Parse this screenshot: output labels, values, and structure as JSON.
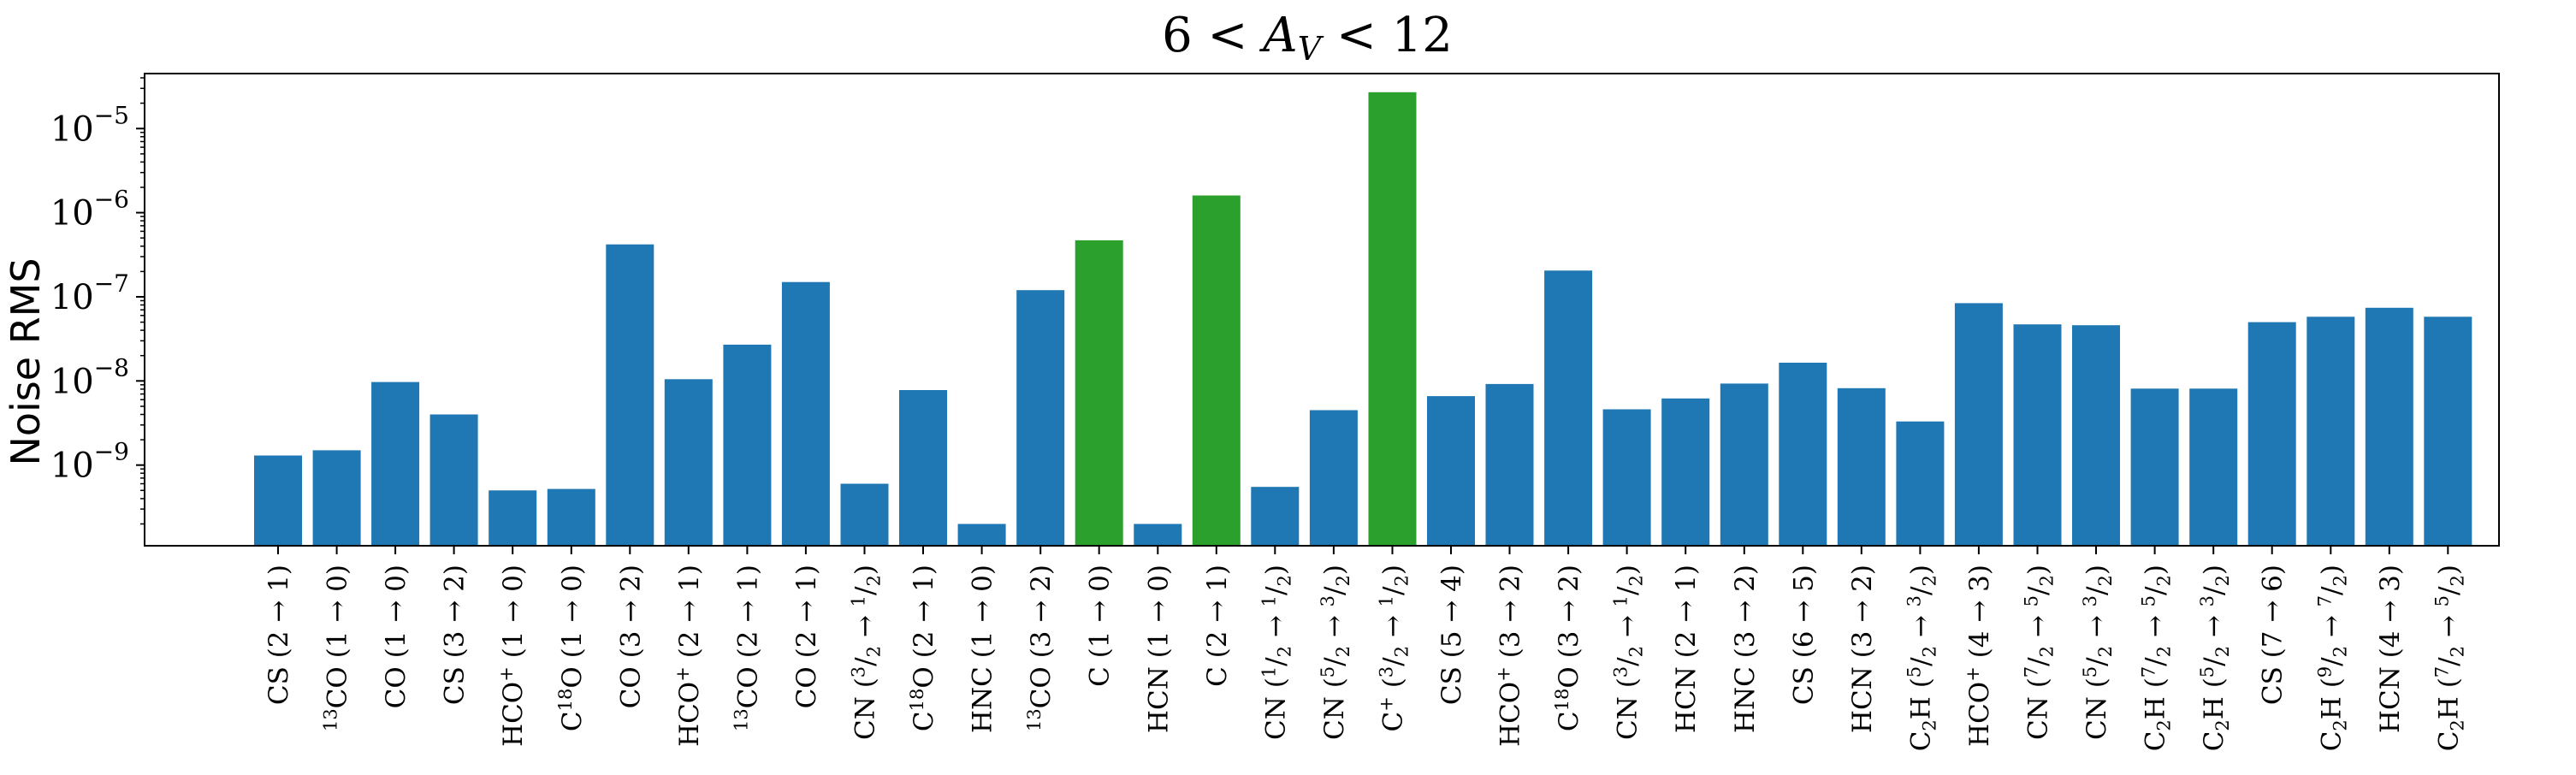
{
  "chart_data": {
    "type": "bar",
    "title": "6 < A_V < 12",
    "title_parts": {
      "left": "6 < ",
      "var": "A",
      "sub": "V",
      "right": " < 12"
    },
    "ylabel": "Noise RMS",
    "xlabel": "",
    "yscale": "log",
    "ylim": [
      1.1e-10,
      4.5e-05
    ],
    "yticks": [
      {
        "value": 1e-09,
        "base": "10",
        "exp": "−9"
      },
      {
        "value": 1e-08,
        "base": "10",
        "exp": "−8"
      },
      {
        "value": 1e-07,
        "base": "10",
        "exp": "−7"
      },
      {
        "value": 1e-06,
        "base": "10",
        "exp": "−6"
      },
      {
        "value": 1e-05,
        "base": "10",
        "exp": "−5"
      }
    ],
    "grid": false,
    "legend": "none",
    "colors": {
      "default": "#1f77b4",
      "highlight": "#2ca02c"
    },
    "categories": [
      "CS (2 → 1)",
      "13CO (1 → 0)",
      "CO (1 → 0)",
      "CS (3 → 2)",
      "HCO+ (1 → 0)",
      "C18O (1 → 0)",
      "CO (3 → 2)",
      "HCO+ (2 → 1)",
      "13CO (2 → 1)",
      "CO (2 → 1)",
      "CN (3/2 → 1/2)",
      "C18O (2 → 1)",
      "HNC (1 → 0)",
      "13CO (3 → 2)",
      "C (1 → 0)",
      "HCN (1 → 0)",
      "C (2 → 1)",
      "CN (1/2 → 1/2)",
      "CN (5/2 → 3/2)",
      "C+ (3/2 → 1/2)",
      "CS (5 → 4)",
      "HCO+ (3 → 2)",
      "C18O (3 → 2)",
      "CN (3/2 → 1/2)",
      "HCN (2 → 1)",
      "HNC (3 → 2)",
      "CS (6 → 5)",
      "HCN (3 → 2)",
      "C2H (5/2 → 3/2)",
      "HCO+ (4 → 3)",
      "CN (7/2 → 5/2)",
      "CN (5/2 → 3/2)",
      "C2H (7/2 → 5/2)",
      "C2H (5/2 → 3/2)",
      "CS (7 → 6)",
      "C2H (9/2 → 7/2)",
      "HCN (4 → 3)",
      "C2H (7/2 → 5/2)"
    ],
    "category_labels": [
      [
        {
          "t": "CS (2 → 1)"
        }
      ],
      [
        {
          "t": "13",
          "s": "sup"
        },
        {
          "t": "CO (1 → 0)"
        }
      ],
      [
        {
          "t": "CO (1 → 0)"
        }
      ],
      [
        {
          "t": "CS (3 → 2)"
        }
      ],
      [
        {
          "t": "HCO"
        },
        {
          "t": "+",
          "s": "sup"
        },
        {
          "t": " (1 → 0)"
        }
      ],
      [
        {
          "t": "C"
        },
        {
          "t": "18",
          "s": "sup"
        },
        {
          "t": "O (1 → 0)"
        }
      ],
      [
        {
          "t": "CO (3 → 2)"
        }
      ],
      [
        {
          "t": "HCO"
        },
        {
          "t": "+",
          "s": "sup"
        },
        {
          "t": " (2 → 1)"
        }
      ],
      [
        {
          "t": "13",
          "s": "sup"
        },
        {
          "t": "CO (2 → 1)"
        }
      ],
      [
        {
          "t": "CO (2 → 1)"
        }
      ],
      [
        {
          "t": "CN ("
        },
        {
          "t": "3",
          "s": "sup"
        },
        {
          "t": "/"
        },
        {
          "t": "2",
          "s": "sub"
        },
        {
          "t": " → "
        },
        {
          "t": "1",
          "s": "sup"
        },
        {
          "t": "/"
        },
        {
          "t": "2",
          "s": "sub"
        },
        {
          "t": ")"
        }
      ],
      [
        {
          "t": "C"
        },
        {
          "t": "18",
          "s": "sup"
        },
        {
          "t": "O (2 → 1)"
        }
      ],
      [
        {
          "t": "HNC (1 → 0)"
        }
      ],
      [
        {
          "t": "13",
          "s": "sup"
        },
        {
          "t": "CO (3 → 2)"
        }
      ],
      [
        {
          "t": "C (1 → 0)"
        }
      ],
      [
        {
          "t": "HCN (1 → 0)"
        }
      ],
      [
        {
          "t": "C (2 → 1)"
        }
      ],
      [
        {
          "t": "CN ("
        },
        {
          "t": "1",
          "s": "sup"
        },
        {
          "t": "/"
        },
        {
          "t": "2",
          "s": "sub"
        },
        {
          "t": " → "
        },
        {
          "t": "1",
          "s": "sup"
        },
        {
          "t": "/"
        },
        {
          "t": "2",
          "s": "sub"
        },
        {
          "t": ")"
        }
      ],
      [
        {
          "t": "CN ("
        },
        {
          "t": "5",
          "s": "sup"
        },
        {
          "t": "/"
        },
        {
          "t": "2",
          "s": "sub"
        },
        {
          "t": " → "
        },
        {
          "t": "3",
          "s": "sup"
        },
        {
          "t": "/"
        },
        {
          "t": "2",
          "s": "sub"
        },
        {
          "t": ")"
        }
      ],
      [
        {
          "t": "C"
        },
        {
          "t": "+",
          "s": "sup"
        },
        {
          "t": " ("
        },
        {
          "t": "3",
          "s": "sup"
        },
        {
          "t": "/"
        },
        {
          "t": "2",
          "s": "sub"
        },
        {
          "t": " → "
        },
        {
          "t": "1",
          "s": "sup"
        },
        {
          "t": "/"
        },
        {
          "t": "2",
          "s": "sub"
        },
        {
          "t": ")"
        }
      ],
      [
        {
          "t": "CS (5 → 4)"
        }
      ],
      [
        {
          "t": "HCO"
        },
        {
          "t": "+",
          "s": "sup"
        },
        {
          "t": " (3 → 2)"
        }
      ],
      [
        {
          "t": "C"
        },
        {
          "t": "18",
          "s": "sup"
        },
        {
          "t": "O (3 → 2)"
        }
      ],
      [
        {
          "t": "CN ("
        },
        {
          "t": "3",
          "s": "sup"
        },
        {
          "t": "/"
        },
        {
          "t": "2",
          "s": "sub"
        },
        {
          "t": " → "
        },
        {
          "t": "1",
          "s": "sup"
        },
        {
          "t": "/"
        },
        {
          "t": "2",
          "s": "sub"
        },
        {
          "t": ")"
        }
      ],
      [
        {
          "t": "HCN (2 → 1)"
        }
      ],
      [
        {
          "t": "HNC (3 → 2)"
        }
      ],
      [
        {
          "t": "CS (6 → 5)"
        }
      ],
      [
        {
          "t": "HCN (3 → 2)"
        }
      ],
      [
        {
          "t": "C"
        },
        {
          "t": "2",
          "s": "sub"
        },
        {
          "t": "H ("
        },
        {
          "t": "5",
          "s": "sup"
        },
        {
          "t": "/"
        },
        {
          "t": "2",
          "s": "sub"
        },
        {
          "t": " → "
        },
        {
          "t": "3",
          "s": "sup"
        },
        {
          "t": "/"
        },
        {
          "t": "2",
          "s": "sub"
        },
        {
          "t": ")"
        }
      ],
      [
        {
          "t": "HCO"
        },
        {
          "t": "+",
          "s": "sup"
        },
        {
          "t": " (4 → 3)"
        }
      ],
      [
        {
          "t": "CN ("
        },
        {
          "t": "7",
          "s": "sup"
        },
        {
          "t": "/"
        },
        {
          "t": "2",
          "s": "sub"
        },
        {
          "t": " → "
        },
        {
          "t": "5",
          "s": "sup"
        },
        {
          "t": "/"
        },
        {
          "t": "2",
          "s": "sub"
        },
        {
          "t": ")"
        }
      ],
      [
        {
          "t": "CN ("
        },
        {
          "t": "5",
          "s": "sup"
        },
        {
          "t": "/"
        },
        {
          "t": "2",
          "s": "sub"
        },
        {
          "t": " → "
        },
        {
          "t": "3",
          "s": "sup"
        },
        {
          "t": "/"
        },
        {
          "t": "2",
          "s": "sub"
        },
        {
          "t": ")"
        }
      ],
      [
        {
          "t": "C"
        },
        {
          "t": "2",
          "s": "sub"
        },
        {
          "t": "H ("
        },
        {
          "t": "7",
          "s": "sup"
        },
        {
          "t": "/"
        },
        {
          "t": "2",
          "s": "sub"
        },
        {
          "t": " → "
        },
        {
          "t": "5",
          "s": "sup"
        },
        {
          "t": "/"
        },
        {
          "t": "2",
          "s": "sub"
        },
        {
          "t": ")"
        }
      ],
      [
        {
          "t": "C"
        },
        {
          "t": "2",
          "s": "sub"
        },
        {
          "t": "H ("
        },
        {
          "t": "5",
          "s": "sup"
        },
        {
          "t": "/"
        },
        {
          "t": "2",
          "s": "sub"
        },
        {
          "t": " → "
        },
        {
          "t": "3",
          "s": "sup"
        },
        {
          "t": "/"
        },
        {
          "t": "2",
          "s": "sub"
        },
        {
          "t": ")"
        }
      ],
      [
        {
          "t": "CS (7 → 6)"
        }
      ],
      [
        {
          "t": "C"
        },
        {
          "t": "2",
          "s": "sub"
        },
        {
          "t": "H ("
        },
        {
          "t": "9",
          "s": "sup"
        },
        {
          "t": "/"
        },
        {
          "t": "2",
          "s": "sub"
        },
        {
          "t": " → "
        },
        {
          "t": "7",
          "s": "sup"
        },
        {
          "t": "/"
        },
        {
          "t": "2",
          "s": "sub"
        },
        {
          "t": ")"
        }
      ],
      [
        {
          "t": "HCN (4 → 3)"
        }
      ],
      [
        {
          "t": "C"
        },
        {
          "t": "2",
          "s": "sub"
        },
        {
          "t": "H ("
        },
        {
          "t": "7",
          "s": "sup"
        },
        {
          "t": "/"
        },
        {
          "t": "2",
          "s": "sub"
        },
        {
          "t": " → "
        },
        {
          "t": "5",
          "s": "sup"
        },
        {
          "t": "/"
        },
        {
          "t": "2",
          "s": "sub"
        },
        {
          "t": ")"
        }
      ]
    ],
    "values": [
      1.3e-09,
      1.5e-09,
      9.7e-09,
      4e-09,
      5e-10,
      5.2e-10,
      4.2e-07,
      1.05e-08,
      2.7e-08,
      1.5e-07,
      6e-10,
      7.8e-09,
      2e-10,
      1.2e-07,
      4.7e-07,
      2e-10,
      1.6e-06,
      5.5e-10,
      4.5e-09,
      2.7e-05,
      6.6e-09,
      9.2e-09,
      2.05e-07,
      4.6e-09,
      6.2e-09,
      9.3e-09,
      1.65e-08,
      8.2e-09,
      3.3e-09,
      8.4e-08,
      4.7e-08,
      4.6e-08,
      8.1e-09,
      8.1e-09,
      5e-08,
      5.8e-08,
      7.4e-08,
      5.8e-08
    ],
    "highlighted": [
      14,
      16,
      19
    ]
  }
}
